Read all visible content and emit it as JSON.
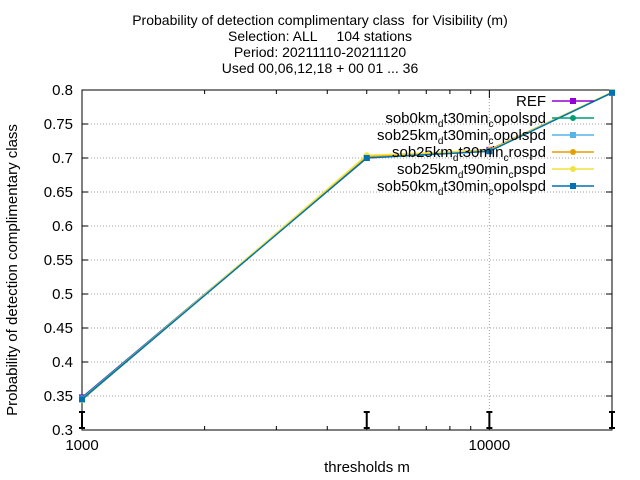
{
  "chart_data": {
    "type": "line",
    "title_lines": [
      "Probability of detection complimentary class  for Visibility (m)",
      "Selection: ALL     104 stations",
      "Period: 20211110-20211120",
      "Used 00,06,12,18 + 00 01 ... 36"
    ],
    "xlabel": "thresholds m",
    "ylabel": "Probability of detection complimentary class",
    "x_scale": "log",
    "xlim": [
      1000,
      20000
    ],
    "ylim": [
      0.3,
      0.8
    ],
    "x_ticks": [
      {
        "value": 1000,
        "label": "1000"
      },
      {
        "value": 10000,
        "label": "10000"
      }
    ],
    "y_ticks": [
      {
        "value": 0.3,
        "label": "0.3"
      },
      {
        "value": 0.35,
        "label": "0.35"
      },
      {
        "value": 0.4,
        "label": "0.4"
      },
      {
        "value": 0.45,
        "label": "0.45"
      },
      {
        "value": 0.5,
        "label": "0.5"
      },
      {
        "value": 0.55,
        "label": "0.55"
      },
      {
        "value": 0.6,
        "label": "0.6"
      },
      {
        "value": 0.65,
        "label": "0.65"
      },
      {
        "value": 0.7,
        "label": "0.7"
      },
      {
        "value": 0.75,
        "label": "0.75"
      },
      {
        "value": 0.8,
        "label": "0.8"
      }
    ],
    "grid": true,
    "legend_position": "top-right",
    "x": [
      1000,
      5000,
      10000,
      20000
    ],
    "series": [
      {
        "name": "REF",
        "label_parts": [
          [
            "REF",
            "n"
          ]
        ],
        "color": "#9400d3",
        "marker": "square",
        "values": [
          0.348,
          0.7,
          0.712,
          0.796
        ]
      },
      {
        "name": "sob0km_dt30min_copolspd",
        "label_parts": [
          [
            "sob0km",
            "n"
          ],
          [
            "d",
            "sub"
          ],
          [
            "t30min",
            "n"
          ],
          [
            "c",
            "sub"
          ],
          [
            "opolspd",
            "n"
          ]
        ],
        "color": "#009e73",
        "marker": "circle",
        "values": [
          0.347,
          0.701,
          0.711,
          0.796
        ]
      },
      {
        "name": "sob25km_dt30min_copolspd",
        "label_parts": [
          [
            "sob25km",
            "n"
          ],
          [
            "d",
            "sub"
          ],
          [
            "t30min",
            "n"
          ],
          [
            "c",
            "sub"
          ],
          [
            "opolspd",
            "n"
          ]
        ],
        "color": "#56b4e9",
        "marker": "square",
        "values": [
          0.346,
          0.701,
          0.71,
          0.796
        ]
      },
      {
        "name": "sob25km_dt30min_crospd",
        "label_parts": [
          [
            "sob25km",
            "n"
          ],
          [
            "d",
            "sub"
          ],
          [
            "t30min",
            "n"
          ],
          [
            "c",
            "sub"
          ],
          [
            "rospd",
            "n"
          ]
        ],
        "color": "#e69f00",
        "marker": "circle",
        "values": [
          0.345,
          0.702,
          0.712,
          0.796
        ]
      },
      {
        "name": "sob25km_dt90min_cpspd",
        "label_parts": [
          [
            "sob25km",
            "n"
          ],
          [
            "d",
            "sub"
          ],
          [
            "t90min",
            "n"
          ],
          [
            "c",
            "sub"
          ],
          [
            "pspd",
            "n"
          ]
        ],
        "color": "#f0e442",
        "marker": "circle",
        "values": [
          0.344,
          0.704,
          0.711,
          0.797
        ]
      },
      {
        "name": "sob50km_dt30min_copolspd",
        "label_parts": [
          [
            "sob50km",
            "n"
          ],
          [
            "d",
            "sub"
          ],
          [
            "t30min",
            "n"
          ],
          [
            "c",
            "sub"
          ],
          [
            "opolspd",
            "n"
          ]
        ],
        "color": "#0072b2",
        "marker": "square",
        "values": [
          0.345,
          0.7,
          0.71,
          0.796
        ]
      }
    ],
    "error_bar_x": [
      1000,
      5000,
      10000,
      20000
    ]
  }
}
